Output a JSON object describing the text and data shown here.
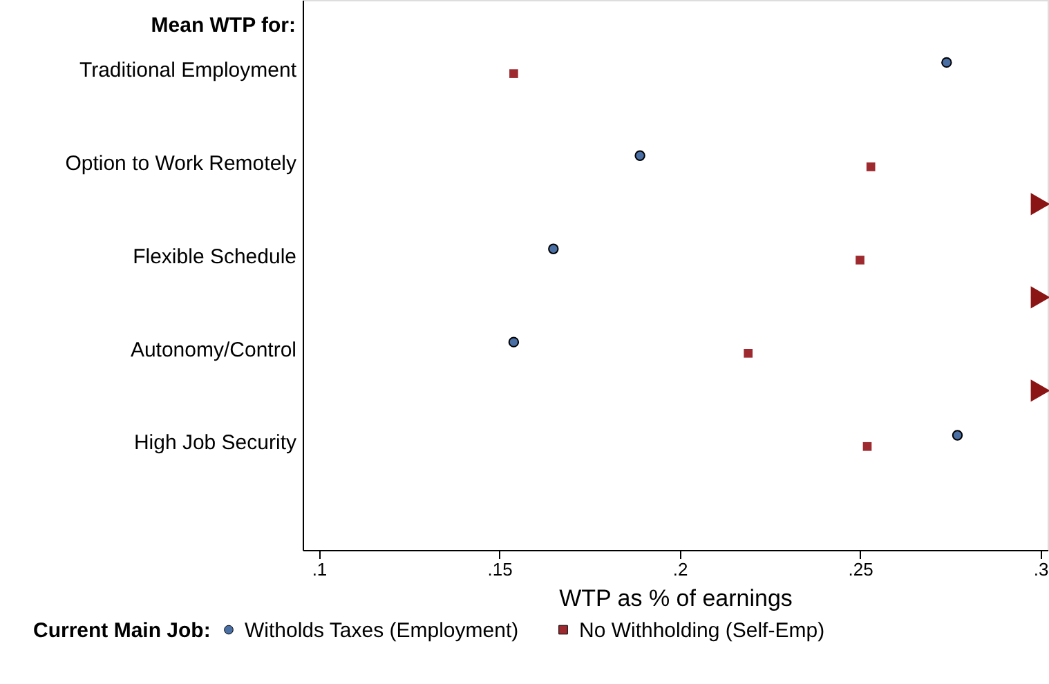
{
  "chart_data": {
    "type": "scatter",
    "orientation": "horizontal",
    "ylabel": "Mean WTP for:",
    "xlabel": "WTP as % of earnings",
    "legend_title": "Current Main Job:",
    "legend": "bottom",
    "grid": false,
    "categories": [
      "Traditional Employment",
      "Option to Work Remotely",
      "Flexible Schedule",
      "Autonomy/Control",
      "High Job Security"
    ],
    "xlim": [
      0.0955,
      0.302
    ],
    "xticks": [
      {
        "value": 0.1,
        "label": ".1"
      },
      {
        "value": 0.15,
        "label": ".15"
      },
      {
        "value": 0.2,
        "label": ".2"
      },
      {
        "value": 0.25,
        "label": ".25"
      },
      {
        "value": 0.3,
        "label": ".3"
      }
    ],
    "series": [
      {
        "name": "Witholds Taxes (Employment)",
        "color": "#4a6fa5",
        "marker": "circle",
        "values": [
          0.274,
          0.189,
          0.165,
          0.154,
          0.277
        ]
      },
      {
        "name": "No Withholding (Self-Emp)",
        "color": "#9e2a2f",
        "marker": "square",
        "values": [
          0.154,
          0.253,
          0.25,
          0.219,
          0.252
        ]
      },
      {
        "color": "#8b1414",
        "marker": "triangle",
        "values": [
          null,
          0.3,
          0.3,
          0.3,
          null
        ]
      }
    ]
  }
}
